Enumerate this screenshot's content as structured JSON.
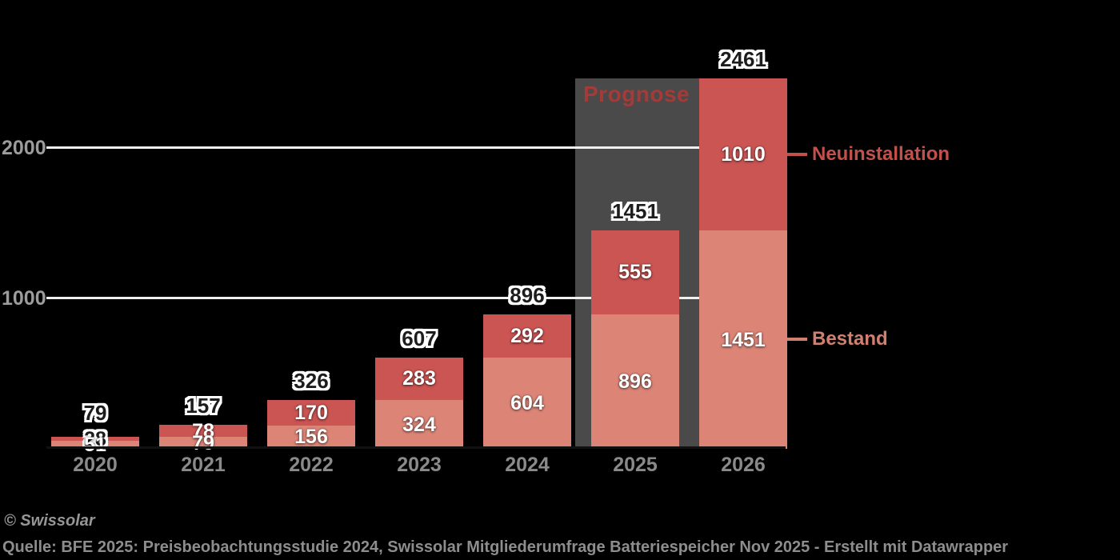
{
  "colors": {
    "background": "#000000",
    "neuinstallation": "#cb5553",
    "bestand": "#dc8577",
    "forecast_band": "#4a4a4a",
    "forecast_label": "#a53b38",
    "gridline": "#efefef",
    "axis_tick_label": "#9c9c9c",
    "x_axis_label": "#8a8a8a",
    "legend_neuinstallation": "#c4504c",
    "legend_bestand": "#d08070",
    "footer_text": "#8d8d8d"
  },
  "chart_data": {
    "type": "bar",
    "stacked": true,
    "categories": [
      "2020",
      "2021",
      "2022",
      "2023",
      "2024",
      "2025",
      "2026"
    ],
    "series": [
      {
        "name": "Neuinstallation",
        "color": "#cb5553",
        "values": [
          28,
          78,
          170,
          283,
          292,
          555,
          1010
        ]
      },
      {
        "name": "Bestand",
        "color": "#dc8577",
        "values": [
          51,
          79,
          156,
          324,
          604,
          896,
          1451
        ]
      }
    ],
    "totals": [
      79,
      157,
      326,
      607,
      896,
      1451,
      2461
    ],
    "y_ticks": [
      1000,
      2000
    ],
    "ylim": [
      0,
      2480
    ],
    "grid": "horizontal",
    "legend_position": "right",
    "forecast": {
      "label": "Prognose",
      "categories": [
        "2025",
        "2026"
      ]
    }
  },
  "legend": {
    "neuinstallation": "Neuinstallation",
    "bestand": "Bestand"
  },
  "footer": {
    "copyright": "© Swissolar",
    "source": "Quelle: BFE 2025: Preisbeobachtungsstudie 2024, Swissolar Mitgliederumfrage Batteriespeicher Nov 2025 - Erstellt mit Datawrapper"
  }
}
